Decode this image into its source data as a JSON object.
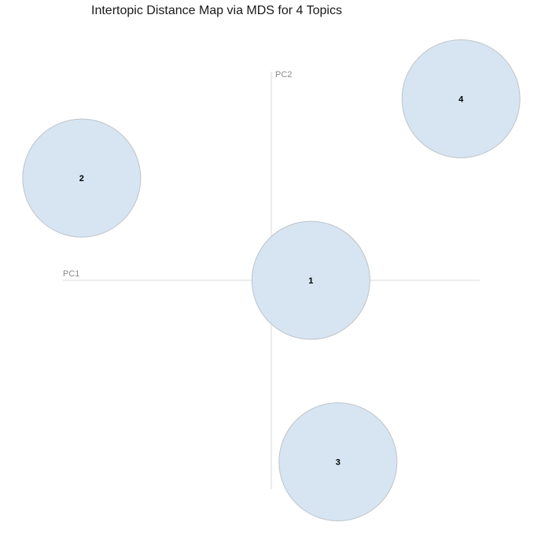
{
  "chart_data": {
    "type": "scatter",
    "title": "Intertopic Distance Map via MDS for 4 Topics",
    "xlabel": "PC1",
    "ylabel": "PC2",
    "xlim": [
      -1.0,
      1.0
    ],
    "ylim": [
      -1.0,
      1.0
    ],
    "grid": false,
    "legend": "none",
    "points": [
      {
        "label": "1",
        "x": 0.19,
        "y": 0.0
      },
      {
        "label": "2",
        "x": -0.91,
        "y": 0.49
      },
      {
        "label": "3",
        "x": 0.32,
        "y": -0.87
      },
      {
        "label": "4",
        "x": 0.91,
        "y": 0.87
      }
    ],
    "circle_fill": "#d2e3f0",
    "circle_stroke": "#bfc4c9"
  }
}
